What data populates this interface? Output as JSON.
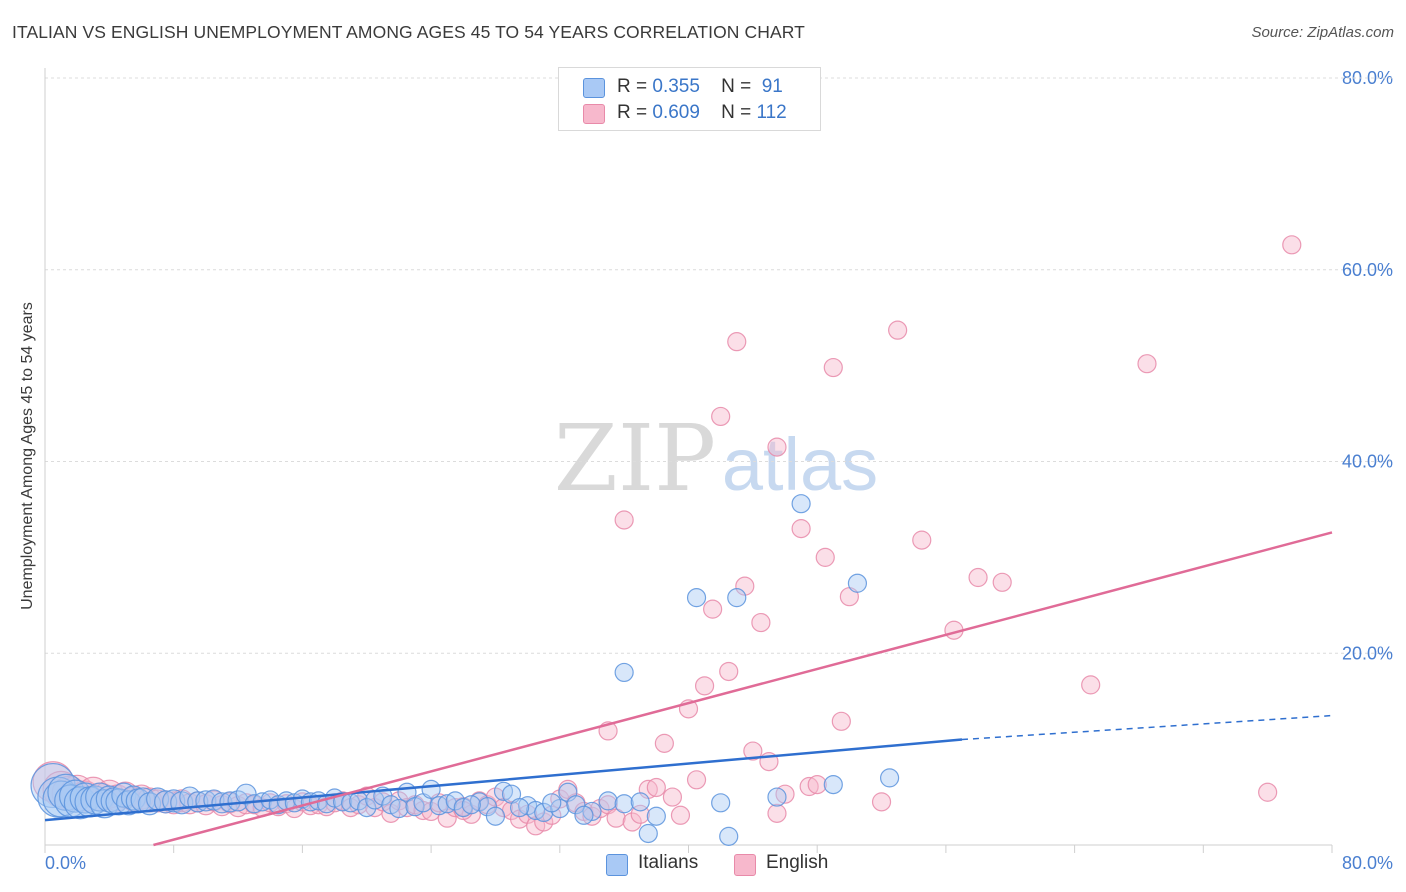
{
  "header": {
    "title": "ITALIAN VS ENGLISH UNEMPLOYMENT AMONG AGES 45 TO 54 YEARS CORRELATION CHART",
    "source": "Source: ZipAtlas.com"
  },
  "watermark": {
    "zip": "ZIP",
    "atlas": "atlas"
  },
  "legend_top": {
    "rows": [
      {
        "r_label": "R =",
        "r_value": "0.355",
        "n_label": "N =",
        "n_value": "91"
      },
      {
        "r_label": "R =",
        "r_value": "0.609",
        "n_label": "N =",
        "n_value": "112"
      }
    ]
  },
  "legend_bottom": {
    "items": [
      "Italians",
      "English"
    ]
  },
  "colors": {
    "italians_fill": "#a9c9f5",
    "italians_stroke": "#5b93dd",
    "italians_line": "#2f6fcf",
    "english_fill": "#f7b8cc",
    "english_stroke": "#e88aa9",
    "english_line": "#e06b97",
    "grid": "#dcdcdc",
    "tick_label": "#4a7fd0"
  },
  "chart_data": {
    "type": "scatter",
    "title": "ITALIAN VS ENGLISH UNEMPLOYMENT AMONG AGES 45 TO 54 YEARS CORRELATION CHART",
    "xlabel": "",
    "ylabel": "Unemployment Among Ages 45 to 54 years",
    "xlim": [
      0,
      80
    ],
    "ylim": [
      0,
      80
    ],
    "x_ticks": [
      "0.0%",
      "80.0%"
    ],
    "y_ticks": [
      "20.0%",
      "40.0%",
      "60.0%",
      "80.0%"
    ],
    "y_tick_values": [
      20,
      40,
      60,
      80
    ],
    "grid": true,
    "legend_position": "top-center",
    "series": [
      {
        "name": "Italians",
        "R": 0.355,
        "N": 91,
        "trend": {
          "x0": 0,
          "y0": 2.6,
          "x1": 57,
          "y1": 11.0,
          "dash_to_x": 80,
          "dash_to_y": 13.5
        },
        "points": [
          [
            0.5,
            6.2
          ],
          [
            0.8,
            5.0
          ],
          [
            1.0,
            4.8
          ],
          [
            1.3,
            5.5
          ],
          [
            1.6,
            4.6
          ],
          [
            1.9,
            5.1
          ],
          [
            2.2,
            4.4
          ],
          [
            2.5,
            4.9
          ],
          [
            2.8,
            4.5
          ],
          [
            3.1,
            4.7
          ],
          [
            3.4,
            5.0
          ],
          [
            3.7,
            4.3
          ],
          [
            4.0,
            4.8
          ],
          [
            4.3,
            4.6
          ],
          [
            4.6,
            4.5
          ],
          [
            4.9,
            5.2
          ],
          [
            5.2,
            4.4
          ],
          [
            5.5,
            4.9
          ],
          [
            5.8,
            4.6
          ],
          [
            6.1,
            4.7
          ],
          [
            6.5,
            4.3
          ],
          [
            7.0,
            4.8
          ],
          [
            7.5,
            4.5
          ],
          [
            8.0,
            4.6
          ],
          [
            8.5,
            4.4
          ],
          [
            9.0,
            5.0
          ],
          [
            9.5,
            4.5
          ],
          [
            10.0,
            4.6
          ],
          [
            10.5,
            4.7
          ],
          [
            11.0,
            4.4
          ],
          [
            11.5,
            4.5
          ],
          [
            12.0,
            4.6
          ],
          [
            12.5,
            5.3
          ],
          [
            13.0,
            4.3
          ],
          [
            13.5,
            4.5
          ],
          [
            14.0,
            4.7
          ],
          [
            14.5,
            4.2
          ],
          [
            15.0,
            4.6
          ],
          [
            15.5,
            4.4
          ],
          [
            16.0,
            4.8
          ],
          [
            16.5,
            4.5
          ],
          [
            17.0,
            4.6
          ],
          [
            17.5,
            4.3
          ],
          [
            18.0,
            4.9
          ],
          [
            18.5,
            4.5
          ],
          [
            19.0,
            4.4
          ],
          [
            19.5,
            4.6
          ],
          [
            20.0,
            3.9
          ],
          [
            20.5,
            4.7
          ],
          [
            21.0,
            5.1
          ],
          [
            21.5,
            4.2
          ],
          [
            22.0,
            3.8
          ],
          [
            22.5,
            5.5
          ],
          [
            23.0,
            4.0
          ],
          [
            23.5,
            4.4
          ],
          [
            24.0,
            5.8
          ],
          [
            24.5,
            4.1
          ],
          [
            25.0,
            4.3
          ],
          [
            25.5,
            4.6
          ],
          [
            26.0,
            3.9
          ],
          [
            27.0,
            4.5
          ],
          [
            27.5,
            4.0
          ],
          [
            28.0,
            3.0
          ],
          [
            28.5,
            5.6
          ],
          [
            29.0,
            5.3
          ],
          [
            30.0,
            4.1
          ],
          [
            30.5,
            3.6
          ],
          [
            31.0,
            3.4
          ],
          [
            32.0,
            3.8
          ],
          [
            32.5,
            5.5
          ],
          [
            33.0,
            4.2
          ],
          [
            34.0,
            3.5
          ],
          [
            35.0,
            4.6
          ],
          [
            36.0,
            4.3
          ],
          [
            37.0,
            4.5
          ],
          [
            37.5,
            1.2
          ],
          [
            38.0,
            3.0
          ],
          [
            40.5,
            25.8
          ],
          [
            42.0,
            4.4
          ],
          [
            42.5,
            0.9
          ],
          [
            43.0,
            25.8
          ],
          [
            45.5,
            5.0
          ],
          [
            47.0,
            35.6
          ],
          [
            49.0,
            6.3
          ],
          [
            50.5,
            27.3
          ],
          [
            52.5,
            7.0
          ],
          [
            36.0,
            18.0
          ],
          [
            33.5,
            3.1
          ],
          [
            29.5,
            3.9
          ],
          [
            26.5,
            4.2
          ],
          [
            31.5,
            4.4
          ]
        ],
        "sizes": [
          22,
          20,
          18,
          18,
          16,
          16,
          16,
          15,
          15,
          14,
          14,
          14,
          13,
          13,
          13,
          12,
          12,
          12,
          12,
          12,
          11,
          11,
          11,
          11,
          11,
          10,
          10,
          10,
          10,
          10,
          10,
          10,
          10,
          9,
          9,
          9,
          9,
          9,
          9,
          9,
          9,
          9,
          9,
          9,
          9,
          9,
          9,
          9,
          9,
          9,
          9,
          9,
          9,
          9,
          9,
          9,
          9,
          9,
          9,
          9,
          9,
          9,
          9,
          9,
          9,
          9,
          9,
          9,
          9,
          9,
          9,
          9,
          9,
          9,
          9,
          9,
          9,
          9,
          9,
          9,
          9,
          9,
          9,
          9,
          9,
          9,
          9,
          9,
          9,
          9,
          9
        ]
      },
      {
        "name": "English",
        "R": 0.609,
        "N": 112,
        "trend": {
          "x0": 0,
          "y0": -3.0,
          "x1": 80,
          "y1": 32.6
        },
        "points": [
          [
            0.5,
            6.6
          ],
          [
            1.0,
            5.8
          ],
          [
            1.5,
            5.4
          ],
          [
            2.0,
            5.6
          ],
          [
            2.5,
            5.1
          ],
          [
            3.0,
            5.5
          ],
          [
            3.5,
            5.0
          ],
          [
            4.0,
            5.3
          ],
          [
            4.5,
            4.9
          ],
          [
            5.0,
            5.2
          ],
          [
            5.5,
            4.8
          ],
          [
            6.0,
            5.0
          ],
          [
            6.5,
            4.7
          ],
          [
            7.0,
            4.6
          ],
          [
            7.5,
            4.5
          ],
          [
            8.0,
            4.4
          ],
          [
            8.5,
            4.6
          ],
          [
            9.0,
            4.3
          ],
          [
            9.5,
            4.5
          ],
          [
            10.0,
            4.2
          ],
          [
            10.5,
            4.6
          ],
          [
            11.0,
            4.1
          ],
          [
            11.5,
            4.4
          ],
          [
            12.0,
            4.0
          ],
          [
            12.5,
            4.3
          ],
          [
            13.0,
            4.2
          ],
          [
            13.5,
            3.9
          ],
          [
            14.0,
            4.4
          ],
          [
            14.5,
            4.0
          ],
          [
            15.0,
            4.3
          ],
          [
            15.5,
            3.8
          ],
          [
            16.0,
            4.5
          ],
          [
            16.5,
            4.1
          ],
          [
            17.0,
            4.2
          ],
          [
            17.5,
            4.0
          ],
          [
            18.0,
            4.4
          ],
          [
            18.5,
            4.6
          ],
          [
            19.0,
            3.9
          ],
          [
            19.5,
            4.2
          ],
          [
            20.0,
            5.1
          ],
          [
            20.5,
            3.9
          ],
          [
            21.0,
            4.5
          ],
          [
            21.5,
            3.3
          ],
          [
            22.0,
            4.6
          ],
          [
            22.5,
            3.9
          ],
          [
            23.0,
            4.2
          ],
          [
            23.5,
            3.6
          ],
          [
            24.0,
            3.5
          ],
          [
            24.5,
            4.4
          ],
          [
            25.0,
            2.8
          ],
          [
            25.5,
            3.9
          ],
          [
            26.0,
            4.0
          ],
          [
            26.5,
            3.2
          ],
          [
            27.0,
            4.6
          ],
          [
            27.5,
            4.2
          ],
          [
            28.0,
            5.0
          ],
          [
            28.5,
            3.9
          ],
          [
            29.0,
            3.6
          ],
          [
            29.5,
            2.7
          ],
          [
            30.0,
            3.2
          ],
          [
            30.5,
            2.0
          ],
          [
            31.0,
            2.4
          ],
          [
            31.5,
            3.1
          ],
          [
            32.0,
            4.8
          ],
          [
            32.5,
            5.8
          ],
          [
            33.0,
            4.4
          ],
          [
            33.5,
            3.5
          ],
          [
            34.0,
            3.0
          ],
          [
            34.5,
            3.8
          ],
          [
            35.0,
            4.2
          ],
          [
            35.5,
            2.8
          ],
          [
            36.5,
            2.4
          ],
          [
            37.0,
            3.2
          ],
          [
            37.5,
            5.8
          ],
          [
            38.0,
            6.0
          ],
          [
            38.5,
            10.6
          ],
          [
            39.0,
            5.0
          ],
          [
            40.0,
            14.2
          ],
          [
            40.5,
            6.8
          ],
          [
            41.0,
            16.6
          ],
          [
            41.5,
            24.6
          ],
          [
            42.0,
            44.7
          ],
          [
            42.5,
            18.1
          ],
          [
            43.0,
            52.5
          ],
          [
            43.5,
            27.0
          ],
          [
            44.0,
            9.8
          ],
          [
            44.5,
            23.2
          ],
          [
            45.0,
            8.7
          ],
          [
            45.5,
            41.5
          ],
          [
            46.0,
            5.3
          ],
          [
            47.0,
            33.0
          ],
          [
            47.5,
            6.1
          ],
          [
            48.0,
            6.3
          ],
          [
            48.5,
            30.0
          ],
          [
            49.0,
            49.8
          ],
          [
            49.5,
            12.9
          ],
          [
            50.0,
            25.9
          ],
          [
            52.0,
            4.5
          ],
          [
            53.0,
            53.7
          ],
          [
            54.5,
            31.8
          ],
          [
            56.5,
            22.4
          ],
          [
            58.0,
            27.9
          ],
          [
            59.5,
            27.4
          ],
          [
            65.0,
            16.7
          ],
          [
            68.5,
            50.2
          ],
          [
            77.5,
            62.6
          ],
          [
            76.0,
            5.5
          ],
          [
            36.0,
            33.9
          ],
          [
            35.0,
            11.9
          ],
          [
            26.0,
            3.6
          ],
          [
            39.5,
            3.1
          ],
          [
            45.5,
            3.3
          ]
        ],
        "sizes": [
          20,
          18,
          17,
          16,
          15,
          15,
          14,
          14,
          13,
          13,
          12,
          12,
          12,
          11,
          11,
          11,
          11,
          10,
          10,
          10,
          10,
          10,
          10,
          10,
          10,
          9,
          9,
          9,
          9,
          9,
          9,
          9,
          9,
          9,
          9,
          9,
          9,
          9,
          9,
          9,
          9,
          9,
          9,
          9,
          9,
          9,
          9,
          9,
          9,
          9,
          9,
          9,
          9,
          9,
          9,
          9,
          9,
          9,
          9,
          9,
          9,
          9,
          9,
          9,
          9,
          9,
          9,
          9,
          9,
          9,
          9,
          9,
          9,
          9,
          9,
          9,
          9,
          9,
          9,
          9,
          9,
          9,
          9,
          9,
          9,
          9,
          9,
          9,
          9,
          9,
          9,
          9,
          9,
          9,
          9,
          9,
          9,
          9,
          9,
          9,
          9,
          9,
          9,
          9,
          9,
          9,
          9,
          9,
          9,
          9,
          9,
          9
        ]
      }
    ]
  }
}
